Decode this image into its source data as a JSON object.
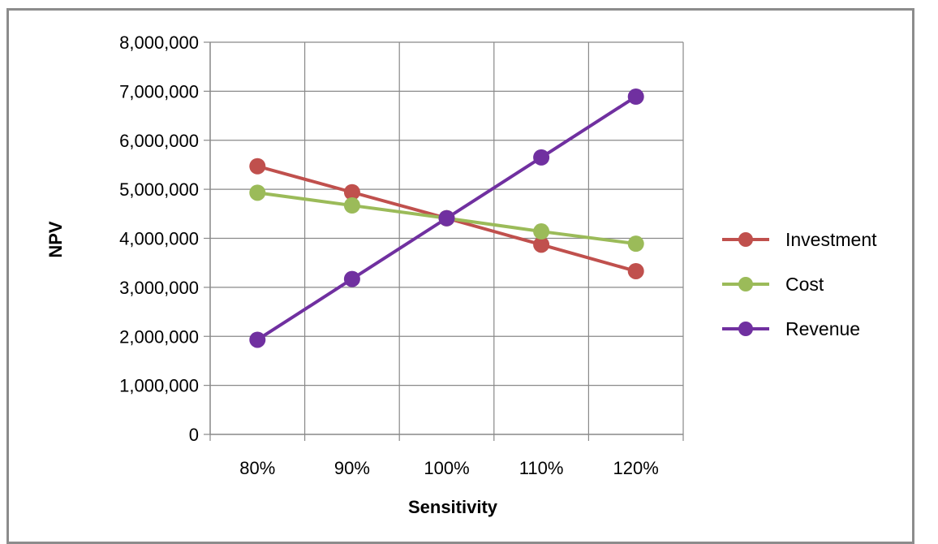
{
  "chart_data": {
    "type": "line",
    "title": "",
    "xlabel": "Sensitivity",
    "ylabel": "NPV",
    "categories": [
      "80%",
      "90%",
      "100%",
      "110%",
      "120%"
    ],
    "ylim": [
      0,
      8000000
    ],
    "y_ticks": [
      "0",
      "1,000,000",
      "2,000,000",
      "3,000,000",
      "4,000,000",
      "5,000,000",
      "6,000,000",
      "7,000,000",
      "8,000,000"
    ],
    "grid": true,
    "legend_position": "right",
    "series": [
      {
        "name": "Investment",
        "color": "#c0504d",
        "values": [
          5470000,
          4940000,
          4410000,
          3870000,
          3330000
        ]
      },
      {
        "name": "Cost",
        "color": "#9bbb59",
        "values": [
          4930000,
          4670000,
          4410000,
          4140000,
          3890000
        ]
      },
      {
        "name": "Revenue",
        "color": "#7030a0",
        "values": [
          1930000,
          3170000,
          4410000,
          5650000,
          6890000
        ]
      }
    ]
  }
}
